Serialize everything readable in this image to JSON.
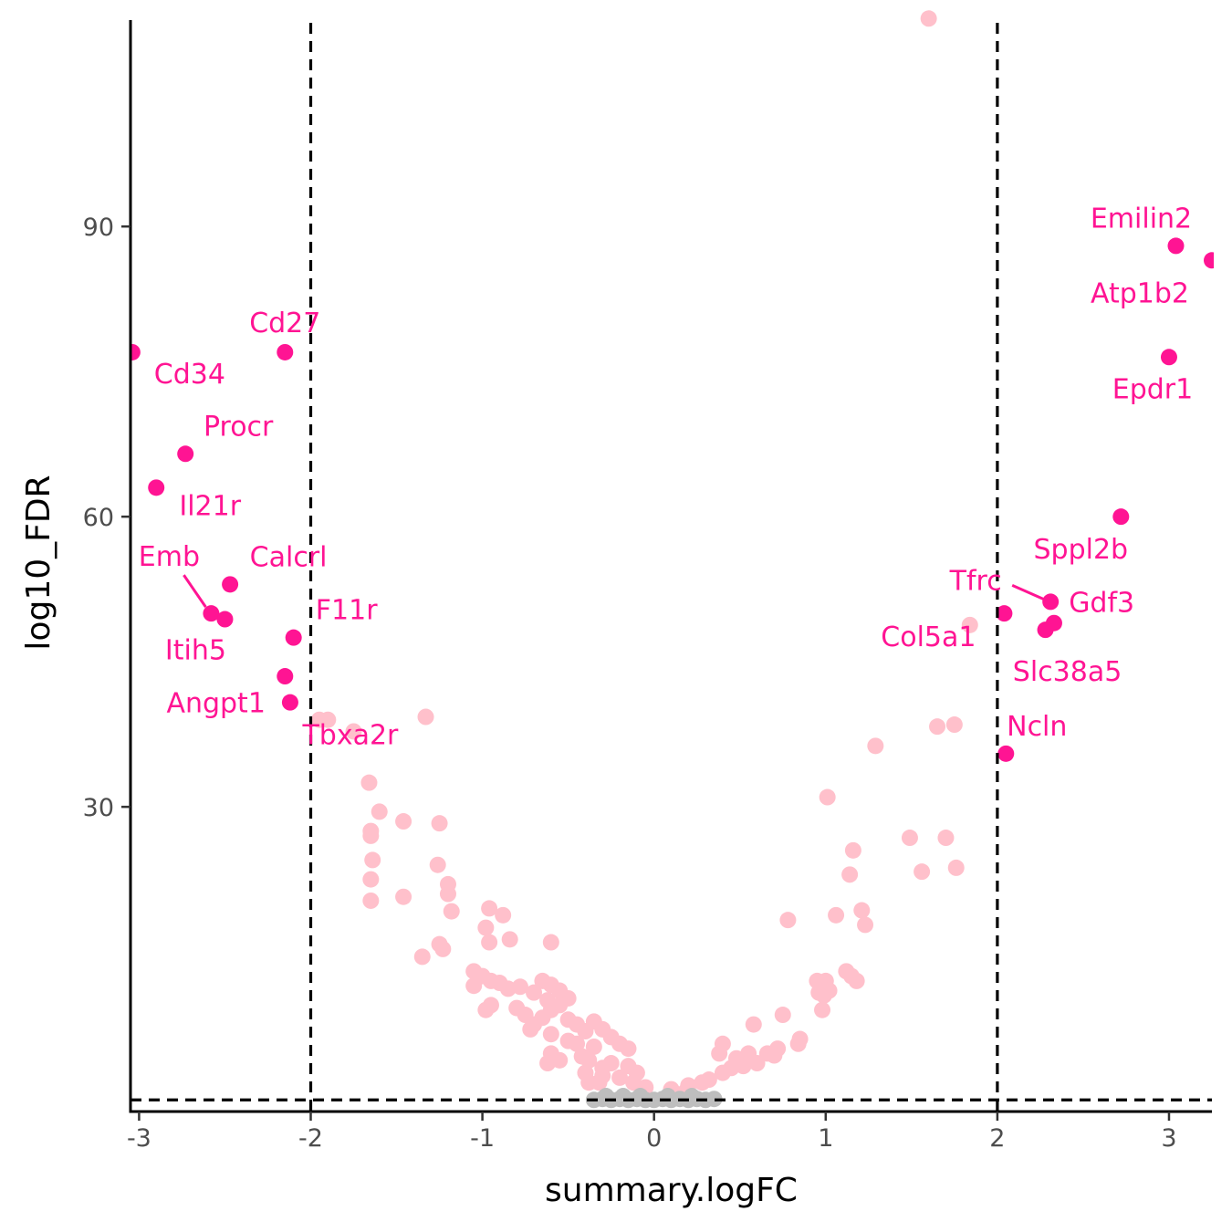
{
  "chart_data": {
    "type": "scatter",
    "xlabel": "summary.logFC",
    "ylabel": "log10_FDR",
    "xlim": [
      -3.05,
      3.25
    ],
    "ylim": [
      -1.5,
      112
    ],
    "xticks": [
      -3,
      -2,
      -1,
      0,
      1,
      2,
      3
    ],
    "xtick_labels": [
      "-3",
      "-2",
      "-1",
      "0",
      "1",
      "2",
      "3"
    ],
    "yticks": [
      30,
      60,
      90
    ],
    "ytick_labels": [
      "30",
      "60",
      "90"
    ],
    "thresholds": {
      "x": [
        -2,
        2
      ],
      "y": [
        -0.3
      ]
    },
    "grid": false,
    "legend": "none",
    "colors": {
      "significant": "#ff1493",
      "moderate": "#ffc0cb",
      "nonsignificant": "#bebebe",
      "threshold_line": "#000000",
      "label": "#ff1493"
    },
    "series": [
      {
        "group": "significant",
        "points": [
          {
            "x": -3.04,
            "y": 77.0
          },
          {
            "x": -2.15,
            "y": 77.0
          },
          {
            "x": -2.73,
            "y": 66.5
          },
          {
            "x": -2.9,
            "y": 63.0
          },
          {
            "x": -2.47,
            "y": 53.0
          },
          {
            "x": -2.58,
            "y": 50.0
          },
          {
            "x": -2.5,
            "y": 49.4
          },
          {
            "x": -2.1,
            "y": 47.5
          },
          {
            "x": -2.15,
            "y": 43.5
          },
          {
            "x": -2.12,
            "y": 40.8
          },
          {
            "x": 3.04,
            "y": 88.0
          },
          {
            "x": 3.25,
            "y": 86.5
          },
          {
            "x": 3.0,
            "y": 76.5
          },
          {
            "x": 2.72,
            "y": 60.0
          },
          {
            "x": 2.31,
            "y": 51.2
          },
          {
            "x": 2.04,
            "y": 50.0
          },
          {
            "x": 2.33,
            "y": 49.0
          },
          {
            "x": 2.28,
            "y": 48.3
          },
          {
            "x": 2.05,
            "y": 35.5
          }
        ]
      },
      {
        "group": "moderate",
        "points": [
          {
            "x": 1.6,
            "y": 111.5
          },
          {
            "x": -1.95,
            "y": 39.0
          },
          {
            "x": -1.9,
            "y": 39.0
          },
          {
            "x": -1.75,
            "y": 37.8
          },
          {
            "x": -1.33,
            "y": 39.3
          },
          {
            "x": -1.66,
            "y": 32.5
          },
          {
            "x": -1.6,
            "y": 29.5
          },
          {
            "x": -1.65,
            "y": 27.5
          },
          {
            "x": -1.65,
            "y": 27.0
          },
          {
            "x": -1.46,
            "y": 28.5
          },
          {
            "x": -1.25,
            "y": 28.3
          },
          {
            "x": -1.64,
            "y": 24.5
          },
          {
            "x": -1.26,
            "y": 24.0
          },
          {
            "x": -1.65,
            "y": 22.5
          },
          {
            "x": -1.2,
            "y": 22.0
          },
          {
            "x": -1.2,
            "y": 21.0
          },
          {
            "x": -1.46,
            "y": 20.7
          },
          {
            "x": -1.65,
            "y": 20.3
          },
          {
            "x": -1.18,
            "y": 19.2
          },
          {
            "x": -0.96,
            "y": 19.5
          },
          {
            "x": -0.88,
            "y": 18.8
          },
          {
            "x": -0.98,
            "y": 17.5
          },
          {
            "x": -0.96,
            "y": 16.0
          },
          {
            "x": -0.84,
            "y": 16.3
          },
          {
            "x": -0.6,
            "y": 16.0
          },
          {
            "x": -1.25,
            "y": 15.8
          },
          {
            "x": -1.23,
            "y": 15.3
          },
          {
            "x": -1.35,
            "y": 14.5
          },
          {
            "x": -1.05,
            "y": 13.0
          },
          {
            "x": -1.0,
            "y": 12.5
          },
          {
            "x": -0.95,
            "y": 12.0
          },
          {
            "x": -0.9,
            "y": 11.8
          },
          {
            "x": -1.05,
            "y": 11.5
          },
          {
            "x": -0.85,
            "y": 11.2
          },
          {
            "x": -0.78,
            "y": 11.4
          },
          {
            "x": -0.65,
            "y": 12.0
          },
          {
            "x": -0.6,
            "y": 11.6
          },
          {
            "x": -0.7,
            "y": 10.8
          },
          {
            "x": -0.55,
            "y": 11.0
          },
          {
            "x": -0.5,
            "y": 10.2
          },
          {
            "x": -0.62,
            "y": 10.0
          },
          {
            "x": -0.95,
            "y": 9.5
          },
          {
            "x": -0.98,
            "y": 9.0
          },
          {
            "x": -0.8,
            "y": 9.2
          },
          {
            "x": -0.6,
            "y": 9.0
          },
          {
            "x": -0.55,
            "y": 9.5
          },
          {
            "x": -0.75,
            "y": 8.5
          },
          {
            "x": -0.65,
            "y": 8.2
          },
          {
            "x": -0.5,
            "y": 8.0
          },
          {
            "x": -0.45,
            "y": 7.5
          },
          {
            "x": -0.35,
            "y": 7.8
          },
          {
            "x": -0.7,
            "y": 7.5
          },
          {
            "x": -0.72,
            "y": 7.0
          },
          {
            "x": -0.6,
            "y": 6.5
          },
          {
            "x": -0.4,
            "y": 6.8
          },
          {
            "x": -0.3,
            "y": 7.0
          },
          {
            "x": -0.25,
            "y": 6.2
          },
          {
            "x": -0.5,
            "y": 5.8
          },
          {
            "x": -0.45,
            "y": 5.5
          },
          {
            "x": -0.35,
            "y": 5.2
          },
          {
            "x": -0.2,
            "y": 5.5
          },
          {
            "x": -0.15,
            "y": 5.0
          },
          {
            "x": -0.6,
            "y": 4.5
          },
          {
            "x": -0.55,
            "y": 3.8
          },
          {
            "x": -0.62,
            "y": 3.5
          },
          {
            "x": -0.42,
            "y": 4.2
          },
          {
            "x": -0.38,
            "y": 3.8
          },
          {
            "x": -0.3,
            "y": 3.0
          },
          {
            "x": -0.25,
            "y": 3.5
          },
          {
            "x": -0.15,
            "y": 3.2
          },
          {
            "x": -0.1,
            "y": 2.5
          },
          {
            "x": -0.4,
            "y": 2.5
          },
          {
            "x": -0.3,
            "y": 2.2
          },
          {
            "x": -0.2,
            "y": 2.0
          },
          {
            "x": -0.38,
            "y": 1.5
          },
          {
            "x": -0.32,
            "y": 1.5
          },
          {
            "x": -0.12,
            "y": 1.5
          },
          {
            "x": -0.05,
            "y": 1.0
          },
          {
            "x": 1.01,
            "y": 31.0
          },
          {
            "x": 1.29,
            "y": 36.3
          },
          {
            "x": 1.65,
            "y": 38.3
          },
          {
            "x": 1.75,
            "y": 38.5
          },
          {
            "x": 1.84,
            "y": 48.8
          },
          {
            "x": 1.16,
            "y": 25.5
          },
          {
            "x": 1.49,
            "y": 26.8
          },
          {
            "x": 1.7,
            "y": 26.8
          },
          {
            "x": 1.14,
            "y": 23.0
          },
          {
            "x": 1.56,
            "y": 23.3
          },
          {
            "x": 1.76,
            "y": 23.7
          },
          {
            "x": 1.06,
            "y": 18.8
          },
          {
            "x": 1.21,
            "y": 19.3
          },
          {
            "x": 1.23,
            "y": 17.8
          },
          {
            "x": 0.78,
            "y": 18.3
          },
          {
            "x": 0.95,
            "y": 12.0
          },
          {
            "x": 1.0,
            "y": 12.0
          },
          {
            "x": 1.12,
            "y": 13.0
          },
          {
            "x": 1.15,
            "y": 12.5
          },
          {
            "x": 1.18,
            "y": 12.0
          },
          {
            "x": 0.98,
            "y": 11.5
          },
          {
            "x": 1.02,
            "y": 11.0
          },
          {
            "x": 0.96,
            "y": 10.8
          },
          {
            "x": 0.99,
            "y": 10.5
          },
          {
            "x": 0.98,
            "y": 9.0
          },
          {
            "x": 0.75,
            "y": 8.5
          },
          {
            "x": 0.58,
            "y": 7.5
          },
          {
            "x": 0.85,
            "y": 6.0
          },
          {
            "x": 0.84,
            "y": 5.5
          },
          {
            "x": 0.72,
            "y": 5.0
          },
          {
            "x": 0.66,
            "y": 4.5
          },
          {
            "x": 0.7,
            "y": 4.3
          },
          {
            "x": 0.55,
            "y": 4.5
          },
          {
            "x": 0.48,
            "y": 4.0
          },
          {
            "x": 0.6,
            "y": 3.5
          },
          {
            "x": 0.4,
            "y": 5.5
          },
          {
            "x": 0.38,
            "y": 4.5
          },
          {
            "x": 0.52,
            "y": 3.2
          },
          {
            "x": 0.45,
            "y": 3.0
          },
          {
            "x": 0.4,
            "y": 2.5
          },
          {
            "x": 0.32,
            "y": 1.8
          },
          {
            "x": 0.28,
            "y": 1.5
          },
          {
            "x": 0.2,
            "y": 1.2
          },
          {
            "x": 0.1,
            "y": 0.8
          },
          {
            "x": 0.18,
            "y": 0.5
          }
        ]
      },
      {
        "group": "nonsignificant",
        "points": [
          {
            "x": -0.35,
            "y": -0.3
          },
          {
            "x": -0.3,
            "y": -0.2
          },
          {
            "x": -0.25,
            "y": -0.3
          },
          {
            "x": -0.2,
            "y": -0.2
          },
          {
            "x": -0.15,
            "y": -0.3
          },
          {
            "x": -0.1,
            "y": -0.2
          },
          {
            "x": -0.05,
            "y": -0.3
          },
          {
            "x": 0.0,
            "y": -0.3
          },
          {
            "x": 0.05,
            "y": -0.2
          },
          {
            "x": 0.1,
            "y": -0.3
          },
          {
            "x": 0.15,
            "y": -0.2
          },
          {
            "x": 0.2,
            "y": -0.3
          },
          {
            "x": 0.25,
            "y": -0.2
          },
          {
            "x": 0.3,
            "y": -0.3
          },
          {
            "x": 0.35,
            "y": -0.2
          },
          {
            "x": -0.28,
            "y": 0.1
          },
          {
            "x": -0.18,
            "y": 0.1
          },
          {
            "x": -0.08,
            "y": 0.1
          },
          {
            "x": 0.08,
            "y": 0.1
          },
          {
            "x": 0.22,
            "y": 0.1
          }
        ]
      }
    ],
    "labels": [
      {
        "text": "Cd27",
        "x": -2.15,
        "y": 77.0,
        "side": "above"
      },
      {
        "text": "Cd34",
        "x": -3.04,
        "y": 77.0,
        "side": "below-right"
      },
      {
        "text": "Procr",
        "x": -2.73,
        "y": 66.5,
        "side": "above-right"
      },
      {
        "text": "Il21r",
        "x": -2.9,
        "y": 63.0,
        "side": "below-right"
      },
      {
        "text": "Emb",
        "x": -2.58,
        "y": 50.0,
        "side": "above-left"
      },
      {
        "text": "Calcrl",
        "x": -2.47,
        "y": 53.0,
        "side": "above-right"
      },
      {
        "text": "Itih5",
        "x": -2.5,
        "y": 49.4,
        "side": "below-left"
      },
      {
        "text": "F11r",
        "x": -2.1,
        "y": 47.5,
        "side": "above-right"
      },
      {
        "text": "Angpt1",
        "x": -2.12,
        "y": 40.8,
        "side": "left"
      },
      {
        "text": "Tbxa2r",
        "x": -2.12,
        "y": 40.8,
        "side": "below-right"
      },
      {
        "text": "Emilin2",
        "x": 3.04,
        "y": 88.0,
        "side": "above-left"
      },
      {
        "text": "Atp1b2",
        "x": 3.25,
        "y": 86.5,
        "side": "below-left"
      },
      {
        "text": "Epdr1",
        "x": 3.0,
        "y": 76.5,
        "side": "below"
      },
      {
        "text": "Sppl2b",
        "x": 2.72,
        "y": 60.0,
        "side": "below-left"
      },
      {
        "text": "Tfrc",
        "x": 2.31,
        "y": 51.2,
        "side": "left-leader"
      },
      {
        "text": "Gdf3",
        "x": 2.31,
        "y": 51.2,
        "side": "right"
      },
      {
        "text": "Col5a1",
        "x": 2.04,
        "y": 50.0,
        "side": "below-left"
      },
      {
        "text": "Slc38a5",
        "x": 2.28,
        "y": 48.3,
        "side": "below"
      },
      {
        "text": "Ncln",
        "x": 2.05,
        "y": 35.5,
        "side": "above-right"
      }
    ]
  }
}
